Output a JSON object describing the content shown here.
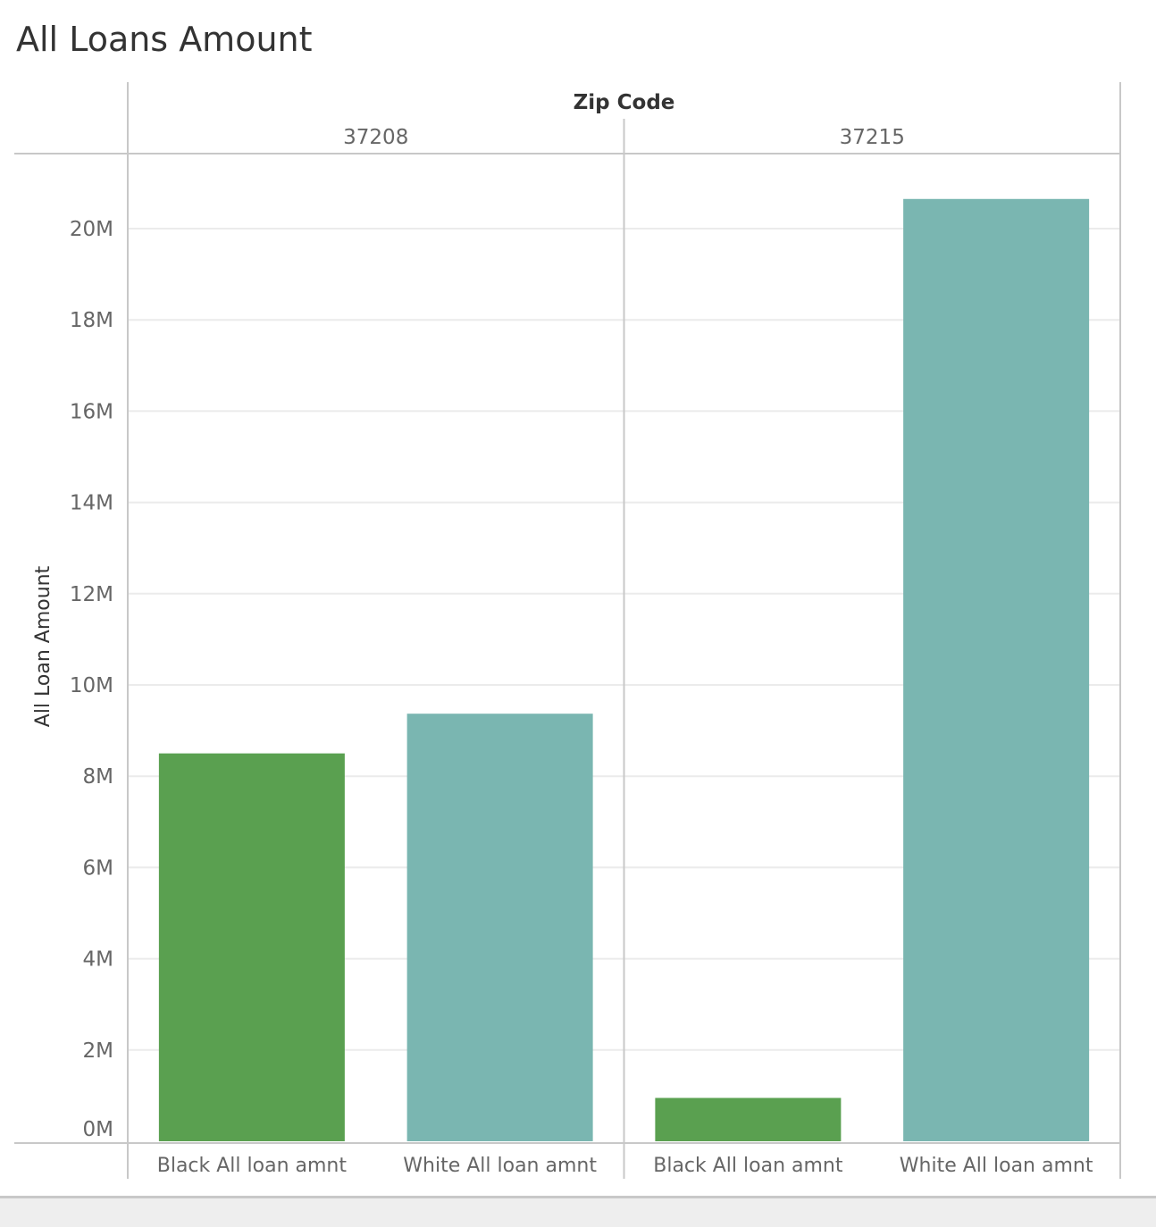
{
  "title": "All Loans Amount",
  "chart_data": {
    "type": "bar",
    "title": "All Loans Amount",
    "ylabel": "All Loan Amount",
    "column_header": "Zip Code",
    "groups": [
      "37208",
      "37215"
    ],
    "categories": [
      "Black All loan amnt",
      "White All loan amnt"
    ],
    "series": [
      {
        "group": "37208",
        "values": [
          8500000,
          9370000
        ]
      },
      {
        "group": "37215",
        "values": [
          950000,
          20650000
        ]
      }
    ],
    "category_colors": {
      "Black All loan amnt": "#5aa050",
      "White All loan amnt": "#7ab6b1"
    },
    "ylim": [
      0,
      21500000
    ],
    "yticks": [
      0,
      2000000,
      4000000,
      6000000,
      8000000,
      10000000,
      12000000,
      14000000,
      16000000,
      18000000,
      20000000
    ],
    "ytick_labels": [
      "0M",
      "2M",
      "4M",
      "6M",
      "8M",
      "10M",
      "12M",
      "14M",
      "16M",
      "18M",
      "20M"
    ],
    "grid": true,
    "legend": "none"
  }
}
